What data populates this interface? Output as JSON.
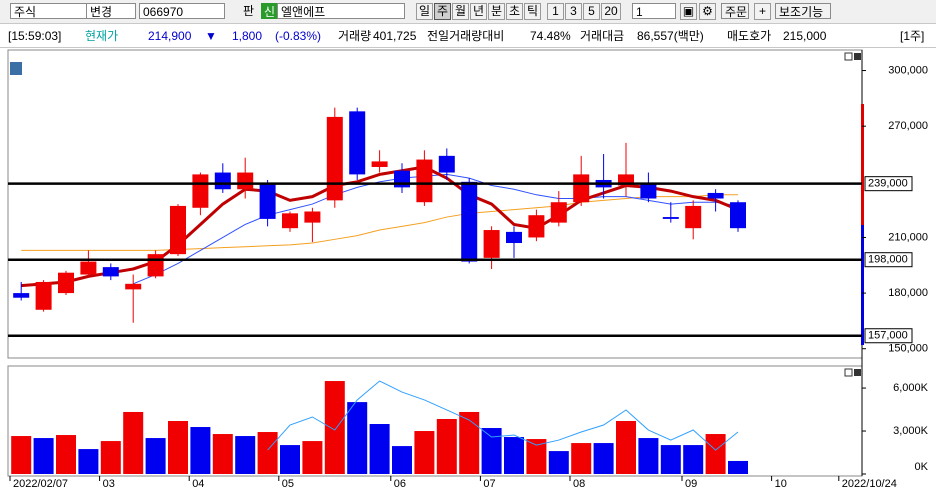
{
  "toolbar": {
    "market": "주식",
    "change": "변경",
    "code": "066970",
    "pan": "판",
    "new": "신",
    "name": "엘앤에프",
    "periods": [
      "일",
      "주",
      "월",
      "년",
      "분",
      "초",
      "틱"
    ],
    "counts": [
      "1",
      "3",
      "5",
      "20"
    ],
    "count_select": "1",
    "order": "주문",
    "indicators": "보조기능"
  },
  "info": {
    "time": "[15:59:03]",
    "price_label": "현재가",
    "price": "214,900",
    "arrow": "▼",
    "change": "1,800",
    "change_pct": "(-0.83%)",
    "volume_label": "거래량",
    "volume": "401,725",
    "prev_ratio_label": "전일거래량대비",
    "prev_ratio": "74.48%",
    "amount_label": "거래대금",
    "amount": "86,557(백만)",
    "ask_label": "매도호가",
    "ask": "215,000",
    "unit": "[1주]"
  },
  "chart_data": {
    "type": "candlestick",
    "up_color": "#f00000",
    "down_color": "#0000f0",
    "categories": [
      "2022/02/07",
      null,
      null,
      null,
      "03",
      null,
      null,
      null,
      "04",
      null,
      null,
      null,
      "05",
      null,
      null,
      null,
      null,
      "06",
      null,
      null,
      null,
      "07",
      null,
      null,
      null,
      "08",
      null,
      null,
      null,
      null,
      "09",
      null,
      null,
      null,
      "10",
      null,
      null,
      "2022/10/24"
    ],
    "open": [
      180000,
      171000,
      180000,
      190000,
      194000,
      182000,
      189000,
      201000,
      226000,
      245000,
      236000,
      239000,
      215000,
      218000,
      230000,
      278000,
      248000,
      246000,
      229000,
      254000,
      240000,
      199000,
      213000,
      210000,
      218000,
      229000,
      241000,
      238000,
      239000,
      221000,
      215000,
      234000,
      229000,
      null,
      null,
      null,
      null,
      null
    ],
    "high": [
      186000,
      187000,
      192000,
      203000,
      196000,
      190000,
      203000,
      228000,
      245000,
      250000,
      253000,
      241000,
      224000,
      226000,
      280000,
      280000,
      257000,
      250000,
      257000,
      258000,
      242000,
      216000,
      216000,
      225000,
      235000,
      254000,
      255000,
      261000,
      245000,
      229000,
      230000,
      236000,
      230000,
      null,
      null,
      null,
      null,
      null
    ],
    "low": [
      176000,
      170000,
      179000,
      189000,
      187000,
      164000,
      188000,
      200000,
      222000,
      234000,
      231000,
      216000,
      213000,
      207500,
      226000,
      241000,
      245000,
      234000,
      227000,
      241000,
      196000,
      193000,
      199000,
      208000,
      216000,
      227000,
      231000,
      232000,
      229000,
      218000,
      209000,
      224000,
      213000,
      null,
      null,
      null,
      null,
      null
    ],
    "close": [
      177500,
      186000,
      191000,
      197000,
      189000,
      185000,
      201000,
      227000,
      244000,
      236000,
      245000,
      220000,
      223000,
      224000,
      275000,
      244000,
      251000,
      237000,
      252000,
      245000,
      197000,
      214000,
      207000,
      222000,
      229000,
      244000,
      237000,
      244000,
      231000,
      220000,
      227000,
      231000,
      215000,
      null,
      null,
      null,
      null,
      null
    ],
    "moving_averages": [
      {
        "color": "#f4a020",
        "width": 1,
        "values": [
          203000,
          203000,
          203000,
          203000,
          203000,
          203000,
          203000,
          203500,
          204000,
          204500,
          205000,
          205500,
          206000,
          207000,
          209000,
          211000,
          214000,
          216000,
          218000,
          221000,
          223000,
          224000,
          225000,
          226000,
          227000,
          229000,
          230000,
          231000,
          232000,
          232000,
          232000,
          233000,
          233000,
          null,
          null,
          null,
          null,
          null
        ]
      },
      {
        "color": "#3050ff",
        "width": 1,
        "values": [
          null,
          null,
          null,
          null,
          null,
          185000,
          190000,
          196000,
          203000,
          210000,
          217000,
          222000,
          225000,
          228000,
          233000,
          237000,
          240000,
          242000,
          243000,
          244000,
          242000,
          238000,
          236000,
          233000,
          231000,
          231000,
          232000,
          232000,
          230000,
          228000,
          229000,
          229000,
          227000,
          null,
          null,
          null,
          null,
          null
        ]
      },
      {
        "color": "#c00000",
        "width": 3,
        "values": [
          184000,
          185000,
          186000,
          189000,
          191000,
          193000,
          197000,
          206000,
          217000,
          228000,
          236000,
          235000,
          230000,
          232000,
          238000,
          240000,
          244000,
          246000,
          248000,
          242000,
          233000,
          228000,
          217000,
          215000,
          222000,
          230000,
          234000,
          238000,
          237000,
          235000,
          232000,
          230000,
          225000,
          null,
          null,
          null,
          null,
          null
        ]
      }
    ],
    "ylim": [
      145000,
      310000
    ],
    "yticks": [
      {
        "value": 150000,
        "label": "150,000"
      },
      {
        "value": 180000,
        "label": "180,000"
      },
      {
        "value": 210000,
        "label": "210,000"
      },
      {
        "value": 270000,
        "label": "270,000"
      },
      {
        "value": 300000,
        "label": "300,000"
      }
    ],
    "levels": [
      {
        "value": 239000,
        "label": "239,000"
      },
      {
        "value": 198000,
        "label": "198,000"
      },
      {
        "value": 157000,
        "label": "157,000"
      }
    ],
    "volume": {
      "values": [
        2650,
        2510,
        2720,
        1740,
        2300,
        4330,
        2510,
        3700,
        3280,
        2790,
        2650,
        2930,
        2020,
        2300,
        6490,
        5020,
        3490,
        1950,
        3000,
        3840,
        4330,
        3210,
        2580,
        2440,
        1600,
        2160,
        2160,
        3700,
        2510,
        2020,
        2020,
        2790,
        910,
        null,
        null,
        null,
        null,
        null
      ],
      "colors": [
        "#f00000",
        "#0000f0",
        "#f00000",
        "#0000f0",
        "#f00000",
        "#f00000",
        "#0000f0",
        "#f00000",
        "#0000f0",
        "#f00000",
        "#0000f0",
        "#f00000",
        "#0000f0",
        "#f00000",
        "#f00000",
        "#0000f0",
        "#0000f0",
        "#0000f0",
        "#f00000",
        "#f00000",
        "#f00000",
        "#0000f0",
        "#0000f0",
        "#f00000",
        "#0000f0",
        "#f00000",
        "#0000f0",
        "#f00000",
        "#0000f0",
        "#0000f0",
        "#0000f0",
        "#f00000",
        "#0000f0",
        null,
        null,
        null,
        null,
        null
      ],
      "ma": {
        "color": "#30a0ff",
        "values": [
          null,
          null,
          null,
          null,
          null,
          null,
          null,
          null,
          null,
          null,
          null,
          1670,
          3420,
          3980,
          3070,
          5170,
          6490,
          5720,
          5170,
          4470,
          3770,
          2580,
          2720,
          2020,
          2370,
          2930,
          3420,
          4470,
          3070,
          2370,
          3070,
          1670,
          2930,
          null,
          null,
          null,
          null,
          null
        ]
      },
      "ylim": [
        0,
        7400
      ],
      "yticks": [
        {
          "value": 0,
          "label": "0K"
        },
        {
          "value": 3000,
          "label": "3,000K"
        },
        {
          "value": 6000,
          "label": "6,000K"
        }
      ]
    }
  }
}
